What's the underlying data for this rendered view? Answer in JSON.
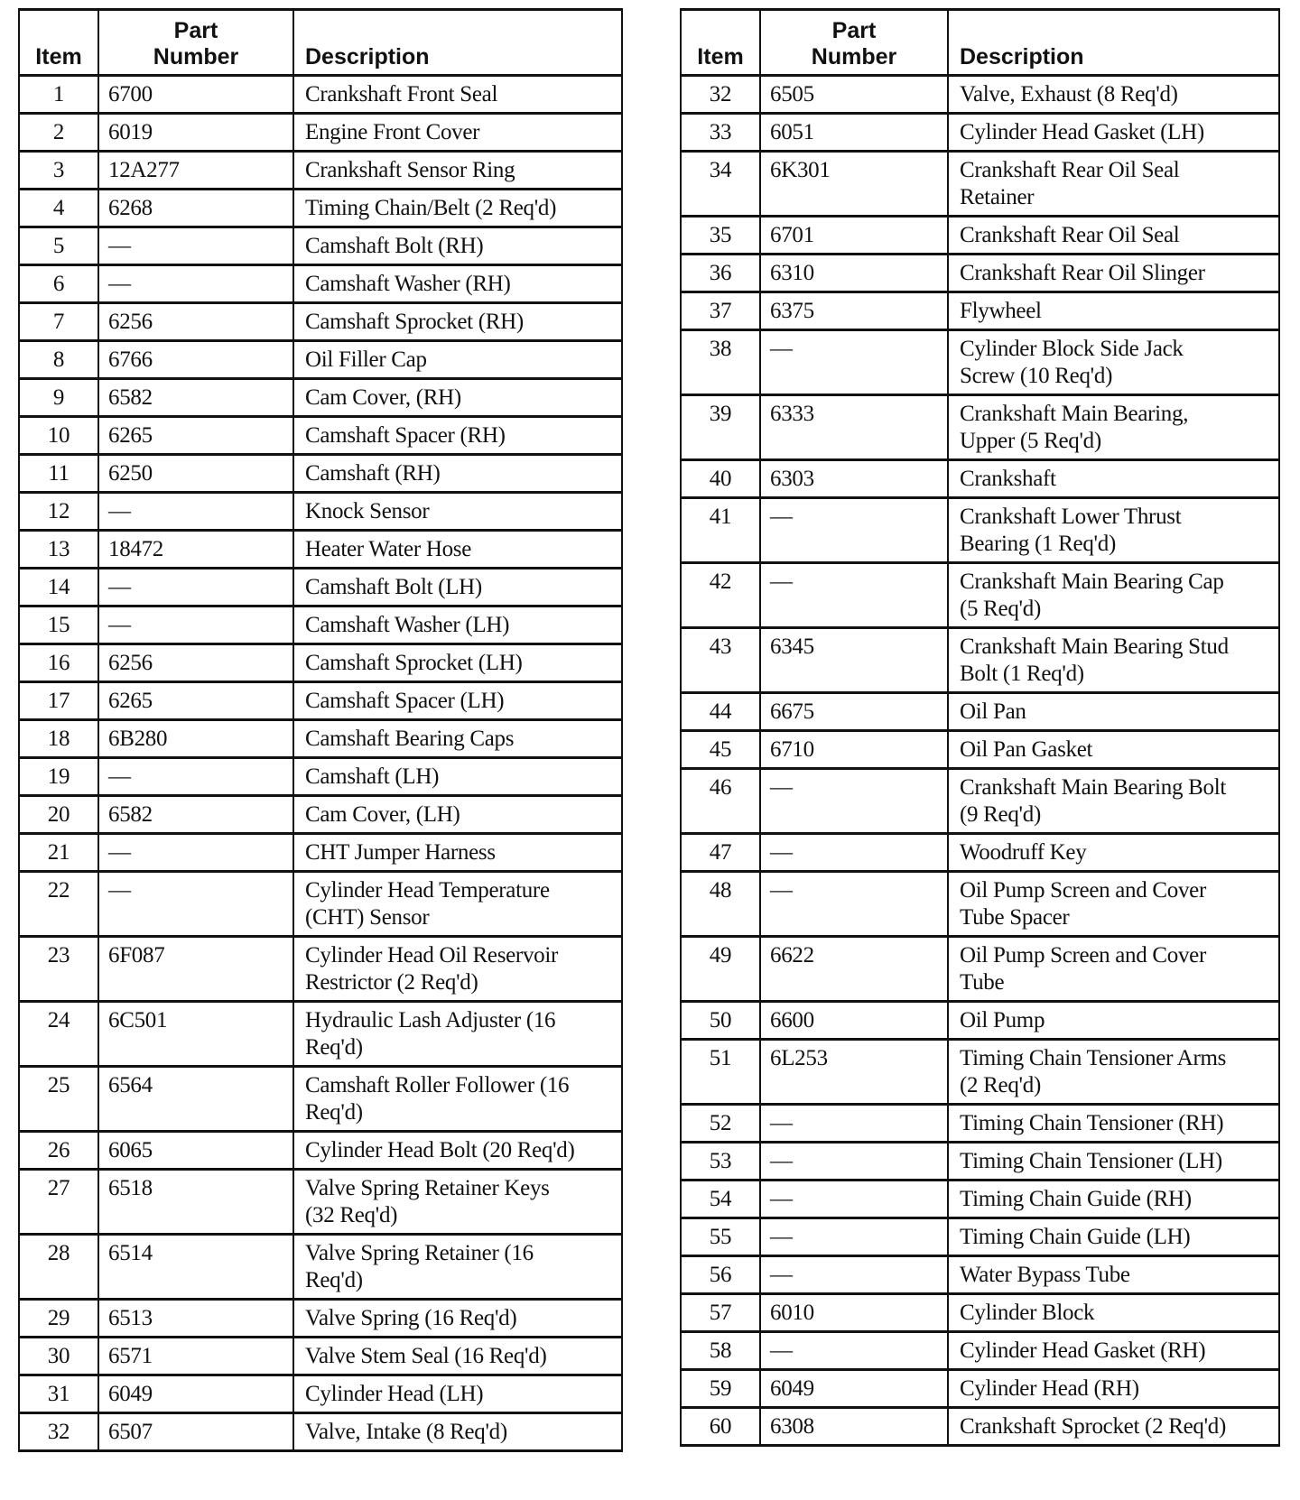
{
  "headers": {
    "item": "Item",
    "part": "Part\nNumber",
    "desc": "Description"
  },
  "left_rows": [
    {
      "item": "1",
      "part": "6700",
      "desc": "Crankshaft Front Seal"
    },
    {
      "item": "2",
      "part": "6019",
      "desc": "Engine Front Cover"
    },
    {
      "item": "3",
      "part": "12A277",
      "desc": "Crankshaft Sensor Ring"
    },
    {
      "item": "4",
      "part": "6268",
      "desc": "Timing Chain/Belt (2 Req'd)"
    },
    {
      "item": "5",
      "part": "—",
      "desc": "Camshaft Bolt (RH)"
    },
    {
      "item": "6",
      "part": "—",
      "desc": "Camshaft Washer (RH)"
    },
    {
      "item": "7",
      "part": "6256",
      "desc": "Camshaft Sprocket (RH)"
    },
    {
      "item": "8",
      "part": "6766",
      "desc": "Oil Filler Cap"
    },
    {
      "item": "9",
      "part": "6582",
      "desc": "Cam Cover, (RH)"
    },
    {
      "item": "10",
      "part": "6265",
      "desc": "Camshaft Spacer (RH)"
    },
    {
      "item": "11",
      "part": "6250",
      "desc": "Camshaft (RH)"
    },
    {
      "item": "12",
      "part": "—",
      "desc": "Knock Sensor"
    },
    {
      "item": "13",
      "part": "18472",
      "desc": "Heater Water Hose"
    },
    {
      "item": "14",
      "part": "—",
      "desc": "Camshaft Bolt (LH)"
    },
    {
      "item": "15",
      "part": "—",
      "desc": "Camshaft Washer (LH)"
    },
    {
      "item": "16",
      "part": "6256",
      "desc": "Camshaft Sprocket (LH)"
    },
    {
      "item": "17",
      "part": "6265",
      "desc": "Camshaft Spacer (LH)"
    },
    {
      "item": "18",
      "part": "6B280",
      "desc": "Camshaft Bearing Caps"
    },
    {
      "item": "19",
      "part": "—",
      "desc": "Camshaft (LH)"
    },
    {
      "item": "20",
      "part": "6582",
      "desc": "Cam Cover, (LH)"
    },
    {
      "item": "21",
      "part": "—",
      "desc": "CHT Jumper Harness"
    },
    {
      "item": "22",
      "part": "—",
      "desc": "Cylinder Head Temperature\n(CHT) Sensor"
    },
    {
      "item": "23",
      "part": "6F087",
      "desc": "Cylinder Head Oil Reservoir\nRestrictor (2 Req'd)"
    },
    {
      "item": "24",
      "part": "6C501",
      "desc": "Hydraulic Lash Adjuster (16\nReq'd)"
    },
    {
      "item": "25",
      "part": "6564",
      "desc": "Camshaft Roller Follower (16\nReq'd)"
    },
    {
      "item": "26",
      "part": "6065",
      "desc": "Cylinder Head Bolt (20 Req'd)"
    },
    {
      "item": "27",
      "part": "6518",
      "desc": "Valve Spring Retainer Keys\n(32 Req'd)"
    },
    {
      "item": "28",
      "part": "6514",
      "desc": "Valve Spring Retainer (16\nReq'd)"
    },
    {
      "item": "29",
      "part": "6513",
      "desc": "Valve Spring (16 Req'd)"
    },
    {
      "item": "30",
      "part": "6571",
      "desc": "Valve Stem Seal (16 Req'd)"
    },
    {
      "item": "31",
      "part": "6049",
      "desc": "Cylinder Head (LH)"
    },
    {
      "item": "32",
      "part": "6507",
      "desc": "Valve, Intake (8 Req'd)"
    }
  ],
  "right_rows": [
    {
      "item": "32",
      "part": "6505",
      "desc": "Valve, Exhaust (8 Req'd)"
    },
    {
      "item": "33",
      "part": "6051",
      "desc": "Cylinder Head Gasket (LH)"
    },
    {
      "item": "34",
      "part": "6K301",
      "desc": "Crankshaft Rear Oil Seal\nRetainer"
    },
    {
      "item": "35",
      "part": "6701",
      "desc": "Crankshaft Rear Oil Seal"
    },
    {
      "item": "36",
      "part": "6310",
      "desc": "Crankshaft Rear Oil Slinger"
    },
    {
      "item": "37",
      "part": "6375",
      "desc": "Flywheel"
    },
    {
      "item": "38",
      "part": "—",
      "desc": "Cylinder Block Side Jack\nScrew (10 Req'd)"
    },
    {
      "item": "39",
      "part": "6333",
      "desc": "Crankshaft Main Bearing,\nUpper (5 Req'd)"
    },
    {
      "item": "40",
      "part": "6303",
      "desc": "Crankshaft"
    },
    {
      "item": "41",
      "part": "—",
      "desc": "Crankshaft Lower Thrust\nBearing (1 Req'd)"
    },
    {
      "item": "42",
      "part": "—",
      "desc": "Crankshaft Main Bearing Cap\n(5 Req'd)"
    },
    {
      "item": "43",
      "part": "6345",
      "desc": "Crankshaft Main Bearing Stud\nBolt (1 Req'd)"
    },
    {
      "item": "44",
      "part": "6675",
      "desc": "Oil Pan"
    },
    {
      "item": "45",
      "part": "6710",
      "desc": "Oil Pan Gasket"
    },
    {
      "item": "46",
      "part": "—",
      "desc": "Crankshaft Main Bearing Bolt\n(9 Req'd)"
    },
    {
      "item": "47",
      "part": "—",
      "desc": "Woodruff Key"
    },
    {
      "item": "48",
      "part": "—",
      "desc": "Oil Pump Screen and Cover\nTube Spacer"
    },
    {
      "item": "49",
      "part": "6622",
      "desc": "Oil Pump Screen and Cover\nTube"
    },
    {
      "item": "50",
      "part": "6600",
      "desc": "Oil Pump"
    },
    {
      "item": "51",
      "part": "6L253",
      "desc": "Timing Chain Tensioner Arms\n(2 Req'd)"
    },
    {
      "item": "52",
      "part": "—",
      "desc": "Timing Chain Tensioner (RH)"
    },
    {
      "item": "53",
      "part": "—",
      "desc": "Timing Chain Tensioner (LH)"
    },
    {
      "item": "54",
      "part": "—",
      "desc": "Timing Chain Guide (RH)"
    },
    {
      "item": "55",
      "part": "—",
      "desc": "Timing Chain Guide (LH)"
    },
    {
      "item": "56",
      "part": "—",
      "desc": "Water Bypass Tube"
    },
    {
      "item": "57",
      "part": "6010",
      "desc": "Cylinder Block"
    },
    {
      "item": "58",
      "part": "—",
      "desc": "Cylinder Head Gasket (RH)"
    },
    {
      "item": "59",
      "part": "6049",
      "desc": "Cylinder Head (RH)"
    },
    {
      "item": "60",
      "part": "6308",
      "desc": "Crankshaft Sprocket (2 Req'd)"
    }
  ]
}
